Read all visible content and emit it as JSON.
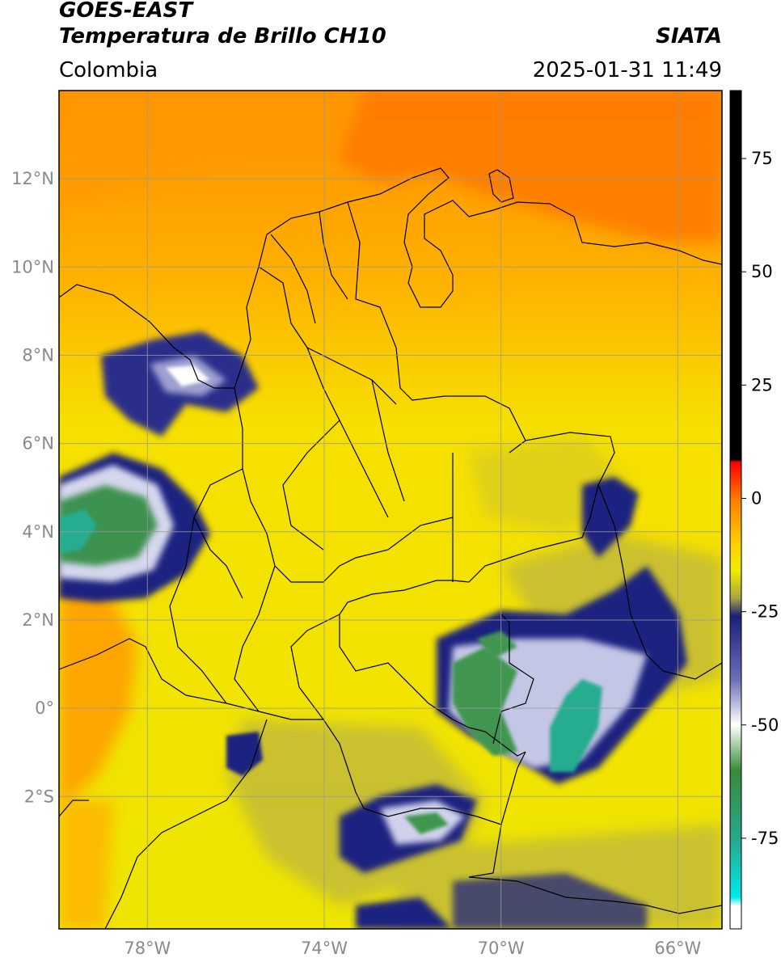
{
  "header": {
    "satellite": "GOES-EAST",
    "product": "Temperatura de Brillo CH10",
    "region": "Colombia",
    "agency": "SIATA",
    "datetime": "2025-01-31 11:49"
  },
  "map": {
    "lon_range": [
      -80,
      -65
    ],
    "lat_range": [
      -5,
      14
    ],
    "lat_ticks": [
      {
        "value": 12,
        "label": "12°N"
      },
      {
        "value": 10,
        "label": "10°N"
      },
      {
        "value": 8,
        "label": "8°N"
      },
      {
        "value": 6,
        "label": "6°N"
      },
      {
        "value": 4,
        "label": "4°N"
      },
      {
        "value": 2,
        "label": "2°N"
      },
      {
        "value": 0,
        "label": "0°"
      },
      {
        "value": -2,
        "label": "2°S"
      }
    ],
    "lon_ticks": [
      {
        "value": -78,
        "label": "78°W"
      },
      {
        "value": -74,
        "label": "74°W"
      },
      {
        "value": -70,
        "label": "70°W"
      },
      {
        "value": -66,
        "label": "66°W"
      }
    ],
    "grid": true,
    "colors": {
      "warm_orange": "#ff8a00",
      "yellow": "#f2ea00",
      "olive": "#b8b43a",
      "navy": "#1e237f",
      "white": "#ffffff",
      "green": "#2f8f4a",
      "teal": "#20b49a",
      "grid": "#999999",
      "border": "#000000"
    }
  },
  "colorbar": {
    "range": [
      -95,
      90
    ],
    "ticks": [
      75,
      50,
      25,
      0,
      -25,
      -50,
      -75
    ],
    "stops": [
      {
        "value": 90,
        "color": "#000000"
      },
      {
        "value": 8.5,
        "color": "#000000"
      },
      {
        "value": 8,
        "color": "#ff0000"
      },
      {
        "value": 0,
        "color": "#ff7a00"
      },
      {
        "value": -10,
        "color": "#ffd000"
      },
      {
        "value": -16,
        "color": "#f0ec00"
      },
      {
        "value": -22,
        "color": "#a8a444"
      },
      {
        "value": -26,
        "color": "#1a1f7a"
      },
      {
        "value": -40,
        "color": "#6c70b8"
      },
      {
        "value": -50,
        "color": "#ffffff"
      },
      {
        "value": -60,
        "color": "#3a8a3a"
      },
      {
        "value": -75,
        "color": "#28a88a"
      },
      {
        "value": -88,
        "color": "#00e8e8"
      },
      {
        "value": -90,
        "color": "#ffffff"
      },
      {
        "value": -95,
        "color": "#ffffff"
      }
    ]
  }
}
